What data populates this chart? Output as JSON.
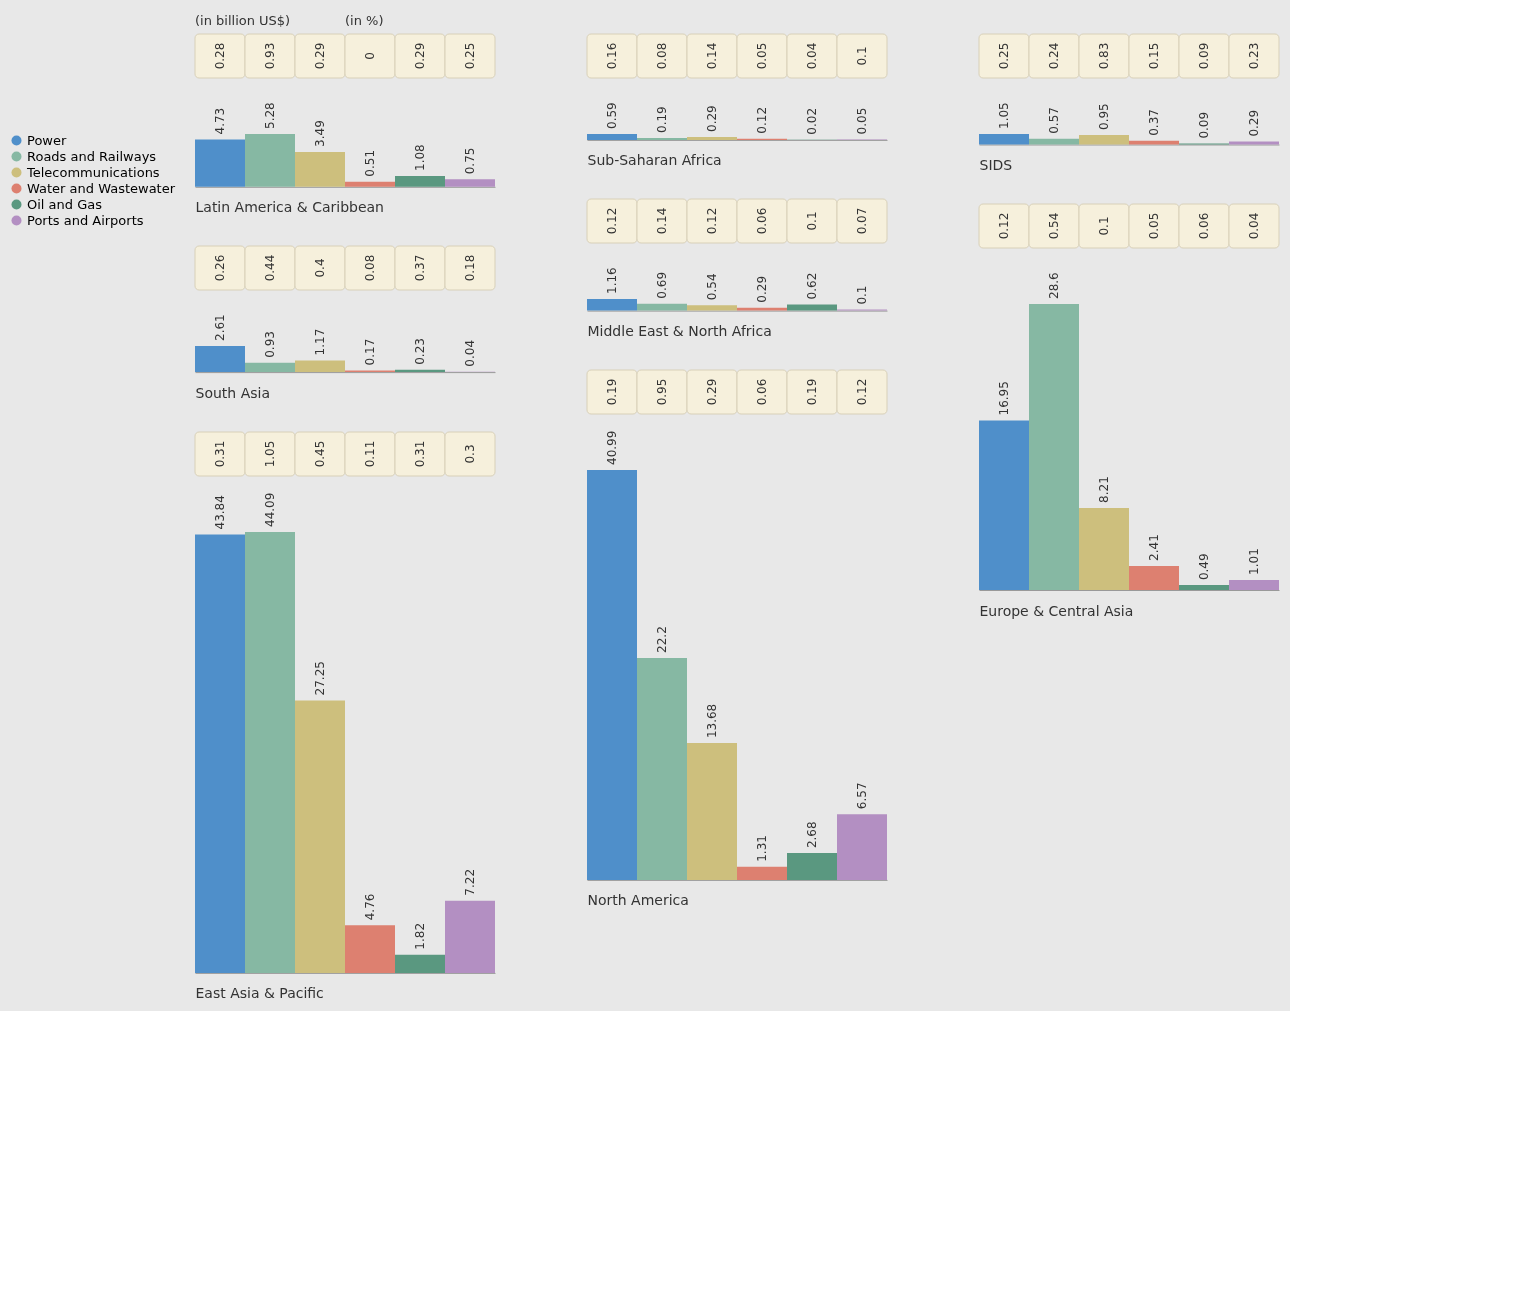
{
  "chart_data": [
    {
      "type": "bar",
      "xlabel": "Latin America & Caribbean",
      "categories": [
        null
      ],
      "data_labels": true,
      "legend": "left",
      "series": [
        {
          "name": "Power",
          "color": "#4f8fca",
          "values": [
            4.73
          ]
        },
        {
          "name": "Roads and Railways",
          "color": "#86b8a3",
          "values": [
            5.28
          ]
        },
        {
          "name": "Telecommunications",
          "color": "#cdbf7d",
          "values": [
            3.49
          ]
        },
        {
          "name": "Water and Wastewater",
          "color": "#dd8070",
          "values": [
            0.51
          ]
        },
        {
          "name": "Oil and Gas",
          "color": "#5a9880",
          "values": [
            1.08
          ]
        },
        {
          "name": "Ports and Airports",
          "color": "#b38fc2",
          "values": [
            0.75
          ]
        }
      ],
      "annotations": [
        "0.28",
        "0.93",
        "0.29",
        "0",
        "0.29",
        "0.25",
        "(in billion US$)",
        "(in %)"
      ]
    },
    {
      "type": "bar",
      "xlabel": "Sub-Saharan Africa",
      "categories": [
        null
      ],
      "data_labels": true,
      "legend": "left",
      "series": [
        {
          "name": "Power",
          "color": "#4f8fca",
          "values": [
            0.59
          ]
        },
        {
          "name": "Roads and Railways",
          "color": "#86b8a3",
          "values": [
            0.19
          ]
        },
        {
          "name": "Telecommunications",
          "color": "#cdbf7d",
          "values": [
            0.29
          ]
        },
        {
          "name": "Water and Wastewater",
          "color": "#dd8070",
          "values": [
            0.12
          ]
        },
        {
          "name": "Oil and Gas",
          "color": "#5a9880",
          "values": [
            0.02
          ]
        },
        {
          "name": "Ports and Airports",
          "color": "#b38fc2",
          "values": [
            0.05
          ]
        }
      ],
      "annotations": [
        "0.16",
        "0.08",
        "0.14",
        "0.05",
        "0.04",
        "0.1"
      ]
    },
    {
      "type": "bar",
      "xlabel": "SIDS",
      "categories": [
        null
      ],
      "data_labels": true,
      "legend": "left",
      "series": [
        {
          "name": "Power",
          "color": "#4f8fca",
          "values": [
            1.05
          ]
        },
        {
          "name": "Roads and Railways",
          "color": "#86b8a3",
          "values": [
            0.57
          ]
        },
        {
          "name": "Telecommunications",
          "color": "#cdbf7d",
          "values": [
            0.95
          ]
        },
        {
          "name": "Water and Wastewater",
          "color": "#dd8070",
          "values": [
            0.37
          ]
        },
        {
          "name": "Oil and Gas",
          "color": "#5a9880",
          "values": [
            0.09
          ]
        },
        {
          "name": "Ports and Airports",
          "color": "#b38fc2",
          "values": [
            0.29
          ]
        }
      ],
      "annotations": [
        "0.25",
        "0.24",
        "0.83",
        "0.15",
        "0.09",
        "0.23"
      ]
    },
    {
      "type": "bar",
      "xlabel": "South Asia",
      "categories": [
        null
      ],
      "data_labels": true,
      "legend": "left",
      "series": [
        {
          "name": "Power",
          "color": "#4f8fca",
          "values": [
            2.61
          ]
        },
        {
          "name": "Roads and Railways",
          "color": "#86b8a3",
          "values": [
            0.93
          ]
        },
        {
          "name": "Telecommunications",
          "color": "#cdbf7d",
          "values": [
            1.17
          ]
        },
        {
          "name": "Water and Wastewater",
          "color": "#dd8070",
          "values": [
            0.17
          ]
        },
        {
          "name": "Oil and Gas",
          "color": "#5a9880",
          "values": [
            0.23
          ]
        },
        {
          "name": "Ports and Airports",
          "color": "#b38fc2",
          "values": [
            0.04
          ]
        }
      ],
      "annotations": [
        "0.26",
        "0.44",
        "0.4",
        "0.08",
        "0.37",
        "0.18"
      ]
    },
    {
      "type": "bar",
      "xlabel": "Middle East & North Africa",
      "categories": [
        null
      ],
      "data_labels": true,
      "legend": "left",
      "series": [
        {
          "name": "Power",
          "color": "#4f8fca",
          "values": [
            1.16
          ]
        },
        {
          "name": "Roads and Railways",
          "color": "#86b8a3",
          "values": [
            0.69
          ]
        },
        {
          "name": "Telecommunications",
          "color": "#cdbf7d",
          "values": [
            0.54
          ]
        },
        {
          "name": "Water and Wastewater",
          "color": "#dd8070",
          "values": [
            0.29
          ]
        },
        {
          "name": "Oil and Gas",
          "color": "#5a9880",
          "values": [
            0.62
          ]
        },
        {
          "name": "Ports and Airports",
          "color": "#b38fc2",
          "values": [
            0.1
          ]
        }
      ],
      "annotations": [
        "0.12",
        "0.14",
        "0.12",
        "0.06",
        "0.1",
        "0.07"
      ]
    },
    {
      "type": "bar",
      "xlabel": "East Asia & Pacific",
      "categories": [
        null
      ],
      "data_labels": true,
      "legend": "left",
      "series": [
        {
          "name": "Power",
          "color": "#4f8fca",
          "values": [
            43.84
          ]
        },
        {
          "name": "Roads and Railways",
          "color": "#86b8a3",
          "values": [
            44.09
          ]
        },
        {
          "name": "Telecommunications",
          "color": "#cdbf7d",
          "values": [
            27.25
          ]
        },
        {
          "name": "Water and Wastewater",
          "color": "#dd8070",
          "values": [
            4.76
          ]
        },
        {
          "name": "Oil and Gas",
          "color": "#5a9880",
          "values": [
            1.82
          ]
        },
        {
          "name": "Ports and Airports",
          "color": "#b38fc2",
          "values": [
            7.22
          ]
        }
      ],
      "annotations": [
        "0.31",
        "1.05",
        "0.45",
        "0.11",
        "0.31",
        "0.3"
      ]
    },
    {
      "type": "bar",
      "xlabel": "North America",
      "categories": [
        null
      ],
      "data_labels": true,
      "legend": "left",
      "series": [
        {
          "name": "Power",
          "color": "#4f8fca",
          "values": [
            40.99
          ]
        },
        {
          "name": "Roads and Railways",
          "color": "#86b8a3",
          "values": [
            22.2
          ]
        },
        {
          "name": "Telecommunications",
          "color": "#cdbf7d",
          "values": [
            13.68
          ]
        },
        {
          "name": "Water and Wastewater",
          "color": "#dd8070",
          "values": [
            1.31
          ]
        },
        {
          "name": "Oil and Gas",
          "color": "#5a9880",
          "values": [
            2.68
          ]
        },
        {
          "name": "Ports and Airports",
          "color": "#b38fc2",
          "values": [
            6.57
          ]
        }
      ],
      "annotations": [
        "0.19",
        "0.95",
        "0.29",
        "0.06",
        "0.19",
        "0.12"
      ]
    },
    {
      "type": "bar",
      "xlabel": "Europe & Central Asia",
      "categories": [
        null
      ],
      "data_labels": true,
      "legend": "left",
      "series": [
        {
          "name": "Power",
          "color": "#4f8fca",
          "values": [
            16.95
          ]
        },
        {
          "name": "Roads and Railways",
          "color": "#86b8a3",
          "values": [
            28.6
          ]
        },
        {
          "name": "Telecommunications",
          "color": "#cdbf7d",
          "values": [
            8.21
          ]
        },
        {
          "name": "Water and Wastewater",
          "color": "#dd8070",
          "values": [
            2.41
          ]
        },
        {
          "name": "Oil and Gas",
          "color": "#5a9880",
          "values": [
            0.49
          ]
        },
        {
          "name": "Ports and Airports",
          "color": "#b38fc2",
          "values": [
            1.01
          ]
        }
      ],
      "annotations": [
        "0.12",
        "0.54",
        "0.1",
        "0.05",
        "0.06",
        "0.04"
      ]
    }
  ]
}
